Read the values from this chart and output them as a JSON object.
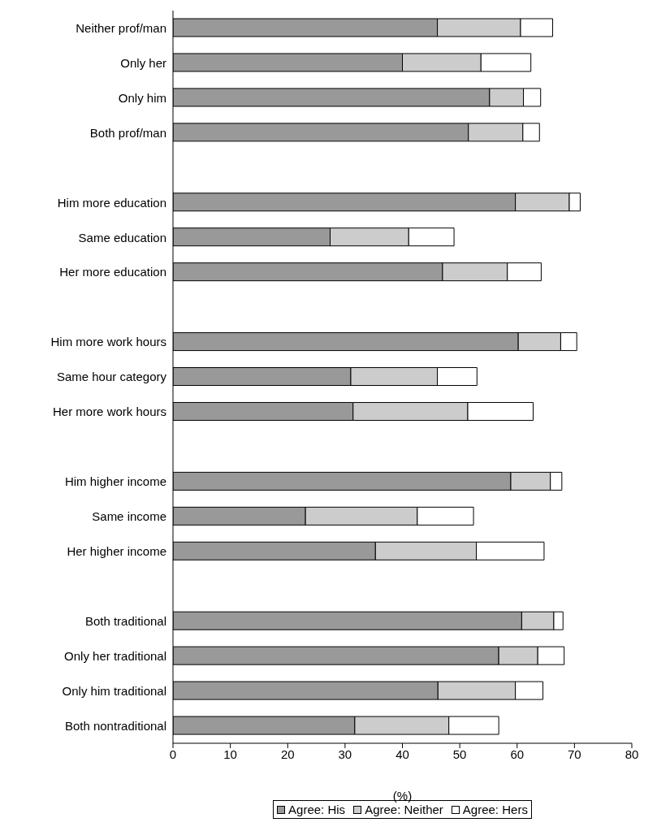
{
  "chart_data": {
    "type": "bar",
    "orientation": "horizontal",
    "stacked": true,
    "xlabel": "(%)",
    "categories": [
      "Neither prof/man",
      "Only her",
      "Only him",
      "Both prof/man",
      null,
      "Him more education",
      "Same education",
      "Her more education",
      null,
      "Him more work hours",
      "Same hour category",
      "Her more work hours",
      null,
      "Him higher income",
      "Same income",
      "Her higher income",
      null,
      "Both traditional",
      "Only her traditional",
      "Only him traditional",
      "Both nontraditional"
    ],
    "series": [
      {
        "name": "Agree: His",
        "color": "#999999",
        "values": [
          46.1,
          40.0,
          55.2,
          51.5,
          null,
          59.7,
          27.4,
          47.0,
          null,
          60.2,
          31.0,
          31.4,
          null,
          58.9,
          23.1,
          35.3,
          null,
          60.8,
          56.8,
          46.2,
          31.7
        ]
      },
      {
        "name": "Agree: Neither",
        "color": "#cccccc",
        "values": [
          14.5,
          13.7,
          5.9,
          9.5,
          null,
          9.4,
          13.7,
          11.3,
          null,
          7.4,
          15.1,
          20.0,
          null,
          6.9,
          19.5,
          17.6,
          null,
          5.6,
          6.8,
          13.5,
          16.4
        ]
      },
      {
        "name": "Agree: Hers",
        "color": "#ffffff",
        "values": [
          5.6,
          8.7,
          3.0,
          2.9,
          null,
          1.9,
          7.9,
          5.9,
          null,
          2.8,
          6.9,
          11.4,
          null,
          2.0,
          9.8,
          11.8,
          null,
          1.6,
          4.6,
          4.8,
          8.7
        ]
      }
    ],
    "xlim": [
      0,
      80
    ],
    "xticks": [
      0,
      10,
      20,
      30,
      40,
      50,
      60,
      70,
      80
    ],
    "grid": false,
    "legend": "bottom"
  }
}
